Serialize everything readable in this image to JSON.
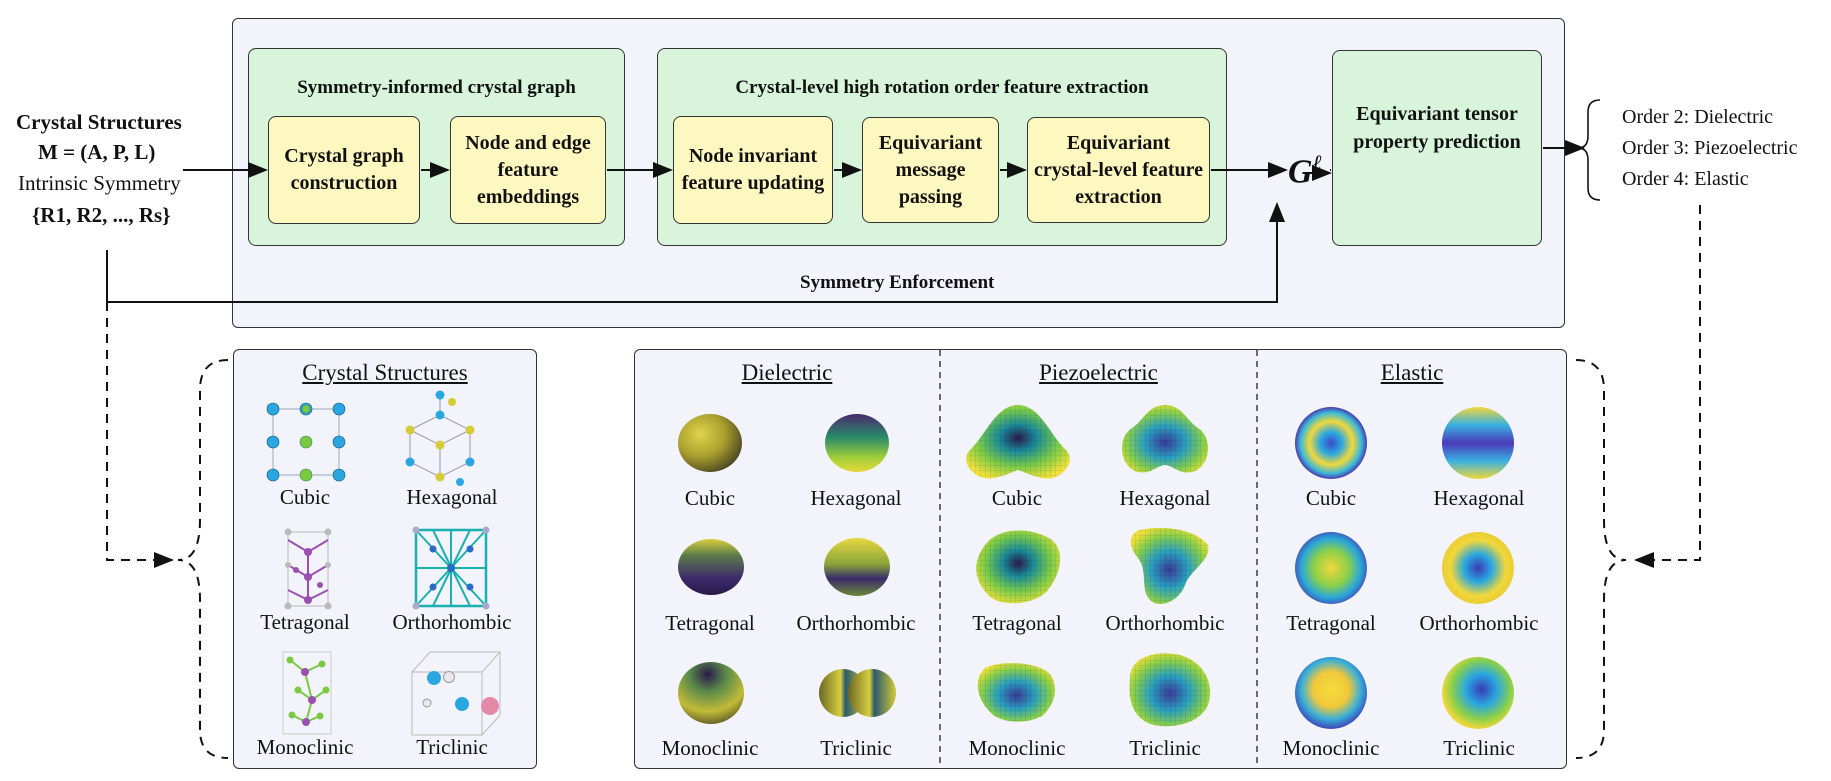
{
  "input": {
    "title": "Crystal Structures",
    "formula": "M = (A, P, L)",
    "symmetry_label": "Intrinsic Symmetry",
    "symmetry_set": "{R1, R2, ..., Rs}"
  },
  "pipeline": {
    "stage1": {
      "title": "Symmetry-informed crystal graph",
      "boxes": [
        "Crystal graph construction",
        "Node and edge feature embeddings"
      ]
    },
    "stage2": {
      "title": "Crystal-level high rotation order feature extraction",
      "boxes": [
        "Node invariant feature updating",
        "Equivariant message passing",
        "Equivariant crystal-level feature extraction"
      ]
    },
    "g_symbol": "G",
    "g_superscript": "ℓ",
    "prediction": "Equivariant tensor property prediction",
    "enforcement": "Symmetry Enforcement"
  },
  "outputs": [
    "Order 2: Dielectric",
    "Order 3: Piezoelectric",
    "Order 4: Elastic"
  ],
  "structures_panel": {
    "title": "Crystal Structures",
    "labels": [
      "Cubic",
      "Hexagonal",
      "Tetragonal",
      "Orthorhombic",
      "Monoclinic",
      "Triclinic"
    ]
  },
  "tensor_panel": {
    "sections": [
      "Dielectric",
      "Piezoelectric",
      "Elastic"
    ],
    "labels": [
      "Cubic",
      "Hexagonal",
      "Tetragonal",
      "Orthorhombic",
      "Monoclinic",
      "Triclinic"
    ]
  },
  "colors": {
    "panel_bg": "#f3f3fb",
    "green_box": "#d8f5dc",
    "yellow_box": "#fdf8c0",
    "atom_blue": "#2aa7e0",
    "atom_green": "#7ac943",
    "atom_purple": "#9b4fb0",
    "atom_yellow": "#d6cc3a"
  }
}
